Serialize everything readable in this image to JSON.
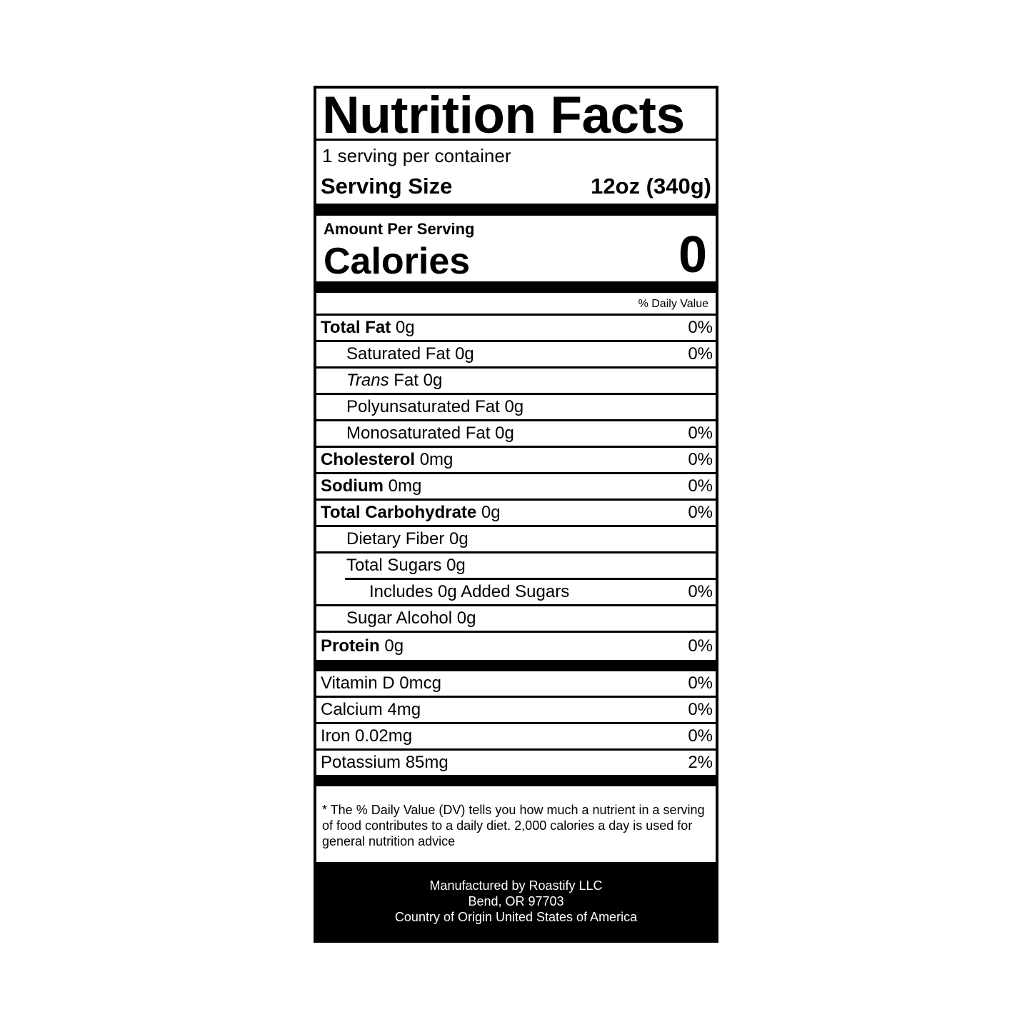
{
  "title": "Nutrition Facts",
  "servings_per_container": "1 serving per container",
  "serving_size_label": "Serving Size",
  "serving_size_value": "12oz (340g)",
  "amount_per_serving": "Amount Per Serving",
  "calories_label": "Calories",
  "calories_value": "0",
  "daily_value_header": "% Daily Value",
  "nutrients": [
    {
      "name": "Total Fat",
      "amount": "0g",
      "dv": "0%"
    },
    {
      "name": "Saturated Fat 0g",
      "amount": "",
      "dv": "0%"
    },
    {
      "name": "Trans",
      "amount": "Fat 0g",
      "dv": ""
    },
    {
      "name": "Polyunsaturated Fat 0g",
      "amount": "",
      "dv": ""
    },
    {
      "name": "Monosaturated Fat 0g",
      "amount": "",
      "dv": "0%"
    },
    {
      "name": "Cholesterol",
      "amount": "0mg",
      "dv": "0%"
    },
    {
      "name": "Sodium",
      "amount": "0mg",
      "dv": "0%"
    },
    {
      "name": "Total Carbohydrate",
      "amount": "0g",
      "dv": "0%"
    },
    {
      "name": "Dietary Fiber 0g",
      "amount": "",
      "dv": ""
    },
    {
      "name": "Total Sugars 0g",
      "amount": "",
      "dv": ""
    },
    {
      "name": "Includes 0g Added Sugars",
      "amount": "",
      "dv": "0%"
    },
    {
      "name": "Sugar Alcohol 0g",
      "amount": "",
      "dv": ""
    },
    {
      "name": "Protein",
      "amount": "0g",
      "dv": "0%"
    }
  ],
  "vitamins": [
    {
      "name": "Vitamin D 0mcg",
      "dv": "0%"
    },
    {
      "name": "Calcium 4mg",
      "dv": "0%"
    },
    {
      "name": "Iron 0.02mg",
      "dv": "0%"
    },
    {
      "name": "Potassium 85mg",
      "dv": "2%"
    }
  ],
  "footnote": "* The % Daily Value (DV) tells you how much a nutrient in a serving of food contributes to a daily diet. 2,000 calories a day is used for general nutrition advice",
  "manufacturer": [
    "Manufactured by Roastify LLC",
    "Bend, OR 97703",
    "Country of Origin United States of America"
  ]
}
